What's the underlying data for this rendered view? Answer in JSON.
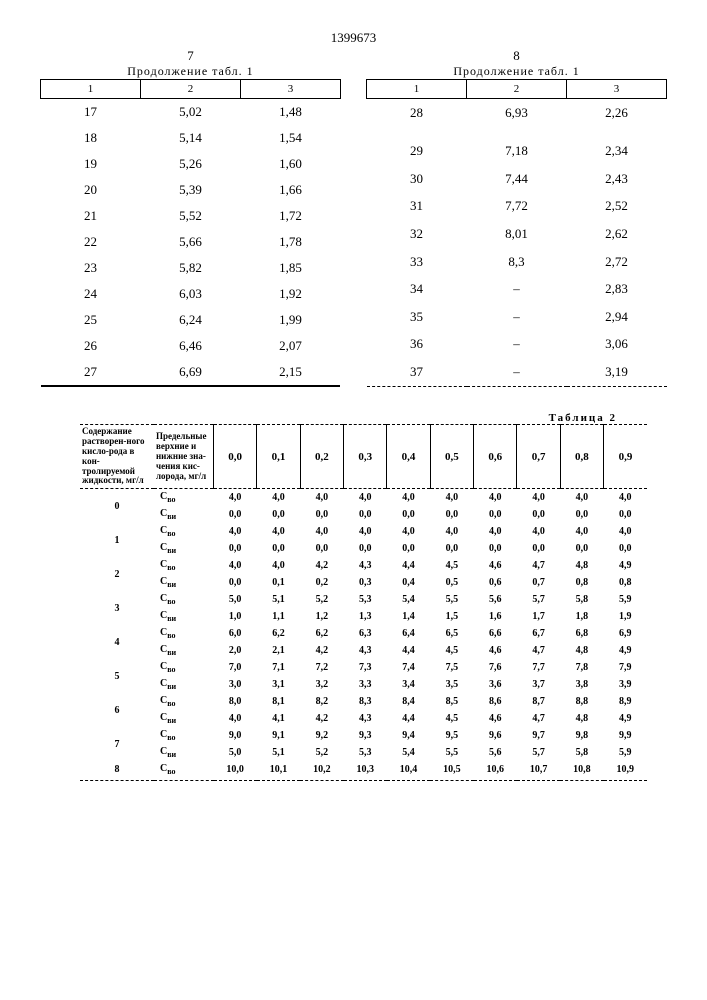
{
  "doc_number": "1399673",
  "page_left": "7",
  "page_right": "8",
  "continuation_label": "Продолжение табл. 1",
  "table1_headers": [
    "1",
    "2",
    "3"
  ],
  "table1_left_rows": [
    [
      "17",
      "5,02",
      "1,48"
    ],
    [
      "18",
      "5,14",
      "1,54"
    ],
    [
      "19",
      "5,26",
      "1,60"
    ],
    [
      "20",
      "5,39",
      "1,66"
    ],
    [
      "21",
      "5,52",
      "1,72"
    ],
    [
      "22",
      "5,66",
      "1,78"
    ],
    [
      "23",
      "5,82",
      "1,85"
    ],
    [
      "24",
      "6,03",
      "1,92"
    ],
    [
      "25",
      "6,24",
      "1,99"
    ],
    [
      "26",
      "6,46",
      "2,07"
    ],
    [
      "27",
      "6,69",
      "2,15"
    ]
  ],
  "table1_right_rows": [
    [
      "28",
      "6,93",
      "2,26"
    ],
    [
      "",
      "",
      ""
    ],
    [
      "29",
      "7,18",
      "2,34"
    ],
    [
      "30",
      "7,44",
      "2,43"
    ],
    [
      "31",
      "7,72",
      "2,52"
    ],
    [
      "32",
      "8,01",
      "2,62"
    ],
    [
      "33",
      "8,3",
      "2,72"
    ],
    [
      "34",
      "–",
      "2,83"
    ],
    [
      "35",
      "–",
      "2,94"
    ],
    [
      "36",
      "–",
      "3,06"
    ],
    [
      "37",
      "–",
      "3,19"
    ]
  ],
  "table2_title": "Таблица 2",
  "table2_rowhdr1": "Содержание растворен-ного кисло-рода в кон-тролируемой жидкости, мг/л",
  "table2_rowhdr2": "Предельные верхние и нижние зна-чения кис-лорода, мг/л",
  "table2_col_headers": [
    "0,0",
    "0,1",
    "0,2",
    "0,3",
    "0,4",
    "0,5",
    "0,6",
    "0,7",
    "0,8",
    "0,9"
  ],
  "label_upper": "С",
  "sub_upper": "во",
  "label_lower": "С",
  "sub_lower": "ви",
  "table2_rows": [
    {
      "idx": "0",
      "u": [
        "4,0",
        "4,0",
        "4,0",
        "4,0",
        "4,0",
        "4,0",
        "4,0",
        "4,0",
        "4,0",
        "4,0"
      ],
      "l": [
        "0,0",
        "0,0",
        "0,0",
        "0,0",
        "0,0",
        "0,0",
        "0,0",
        "0,0",
        "0,0",
        "0,0"
      ]
    },
    {
      "idx": "1",
      "u": [
        "4,0",
        "4,0",
        "4,0",
        "4,0",
        "4,0",
        "4,0",
        "4,0",
        "4,0",
        "4,0",
        "4,0"
      ],
      "l": [
        "0,0",
        "0,0",
        "0,0",
        "0,0",
        "0,0",
        "0,0",
        "0,0",
        "0,0",
        "0,0",
        "0,0"
      ]
    },
    {
      "idx": "2",
      "u": [
        "4,0",
        "4,0",
        "4,2",
        "4,3",
        "4,4",
        "4,5",
        "4,6",
        "4,7",
        "4,8",
        "4,9"
      ],
      "l": [
        "0,0",
        "0,1",
        "0,2",
        "0,3",
        "0,4",
        "0,5",
        "0,6",
        "0,7",
        "0,8",
        "0,8"
      ]
    },
    {
      "idx": "3",
      "u": [
        "5,0",
        "5,1",
        "5,2",
        "5,3",
        "5,4",
        "5,5",
        "5,6",
        "5,7",
        "5,8",
        "5,9"
      ],
      "l": [
        "1,0",
        "1,1",
        "1,2",
        "1,3",
        "1,4",
        "1,5",
        "1,6",
        "1,7",
        "1,8",
        "1,9"
      ]
    },
    {
      "idx": "4",
      "u": [
        "6,0",
        "6,2",
        "6,2",
        "6,3",
        "6,4",
        "6,5",
        "6,6",
        "6,7",
        "6,8",
        "6,9"
      ],
      "l": [
        "2,0",
        "2,1",
        "4,2",
        "4,3",
        "4,4",
        "4,5",
        "4,6",
        "4,7",
        "4,8",
        "4,9"
      ]
    },
    {
      "idx": "5",
      "u": [
        "7,0",
        "7,1",
        "7,2",
        "7,3",
        "7,4",
        "7,5",
        "7,6",
        "7,7",
        "7,8",
        "7,9"
      ],
      "l": [
        "3,0",
        "3,1",
        "3,2",
        "3,3",
        "3,4",
        "3,5",
        "3,6",
        "3,7",
        "3,8",
        "3,9"
      ]
    },
    {
      "idx": "6",
      "u": [
        "8,0",
        "8,1",
        "8,2",
        "8,3",
        "8,4",
        "8,5",
        "8,6",
        "8,7",
        "8,8",
        "8,9"
      ],
      "l": [
        "4,0",
        "4,1",
        "4,2",
        "4,3",
        "4,4",
        "4,5",
        "4,6",
        "4,7",
        "4,8",
        "4,9"
      ]
    },
    {
      "idx": "7",
      "u": [
        "9,0",
        "9,1",
        "9,2",
        "9,3",
        "9,4",
        "9,5",
        "9,6",
        "9,7",
        "9,8",
        "9,9"
      ],
      "l": [
        "5,0",
        "5,1",
        "5,2",
        "5,3",
        "5,4",
        "5,5",
        "5,6",
        "5,7",
        "5,8",
        "5,9"
      ]
    },
    {
      "idx": "8",
      "u": [
        "10,0",
        "10,1",
        "10,2",
        "10,3",
        "10,4",
        "10,5",
        "10,6",
        "10,7",
        "10,8",
        "10,9"
      ],
      "l": [
        "",
        "",
        "",
        "",
        "",
        "",
        "",
        "",
        "",
        ""
      ]
    }
  ]
}
